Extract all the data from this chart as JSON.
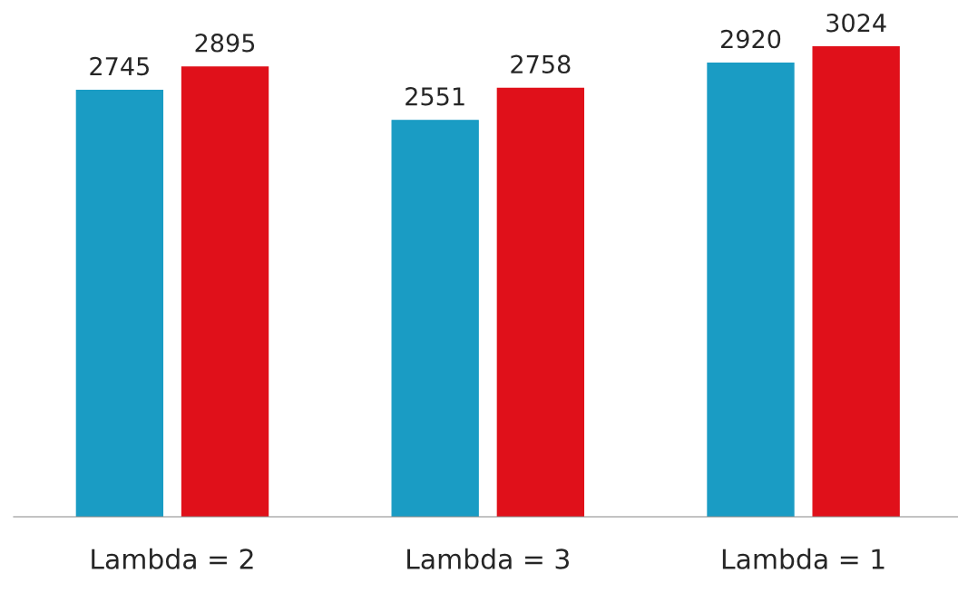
{
  "chart_data": {
    "type": "bar",
    "categories": [
      "Lambda = 2",
      "Lambda = 3",
      "Lambda = 1"
    ],
    "series": [
      {
        "color": "#1a9cc4",
        "values": [
          2745,
          2551,
          2920
        ]
      },
      {
        "color": "#e0101a",
        "values": [
          2895,
          2758,
          3024
        ]
      }
    ],
    "data_labels": true,
    "tick_labels": "x",
    "grid": false,
    "legend": false
  }
}
